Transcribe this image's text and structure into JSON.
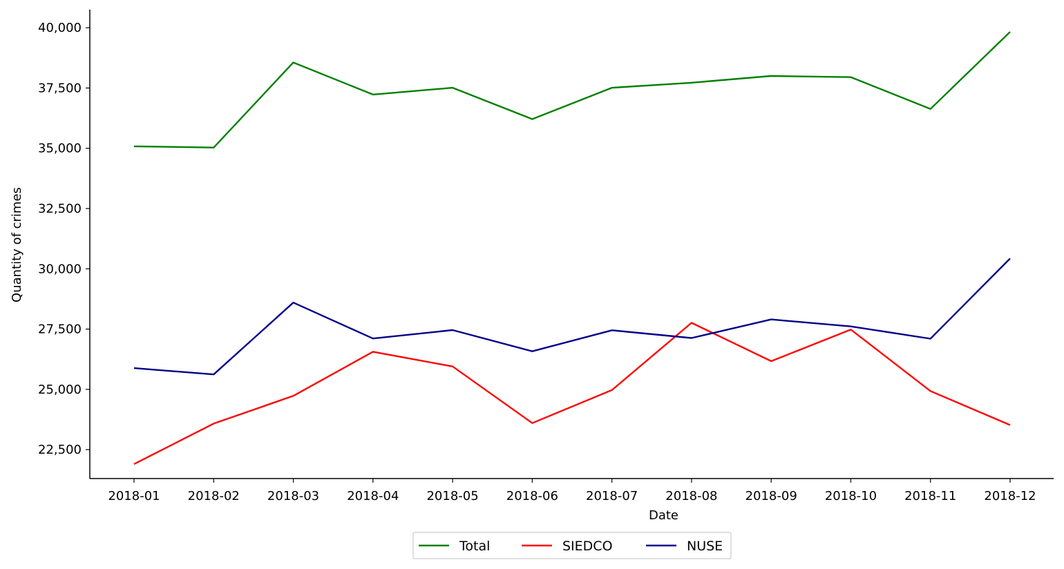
{
  "chart_data": {
    "type": "line",
    "title": "",
    "xlabel": "Date",
    "ylabel": "Quantity of crimes",
    "categories": [
      "2018-01",
      "2018-02",
      "2018-03",
      "2018-04",
      "2018-05",
      "2018-06",
      "2018-07",
      "2018-08",
      "2018-09",
      "2018-10",
      "2018-11",
      "2018-12"
    ],
    "ylim": [
      21300,
      40750
    ],
    "yticks": [
      22500,
      25000,
      27500,
      30000,
      32500,
      35000,
      37500,
      40000
    ],
    "ytick_labels": [
      "22,500",
      "25,000",
      "27,500",
      "30,000",
      "32,500",
      "35,000",
      "37,500",
      "40,000"
    ],
    "grid": false,
    "legend_position": "bottom-center",
    "series": [
      {
        "name": "Total",
        "color": "#008000",
        "values": [
          35080,
          35030,
          38560,
          37230,
          37510,
          36210,
          37510,
          37720,
          38000,
          37950,
          36630,
          39830
        ]
      },
      {
        "name": "SIEDCO",
        "color": "#ff0000",
        "values": [
          21900,
          23580,
          24730,
          26560,
          25950,
          23600,
          24970,
          27760,
          26170,
          27480,
          24930,
          23520
        ]
      },
      {
        "name": "NUSE",
        "color": "#00008b",
        "values": [
          25880,
          25620,
          28600,
          27110,
          27460,
          26580,
          27450,
          27130,
          27900,
          27610,
          27100,
          30430
        ]
      }
    ]
  }
}
